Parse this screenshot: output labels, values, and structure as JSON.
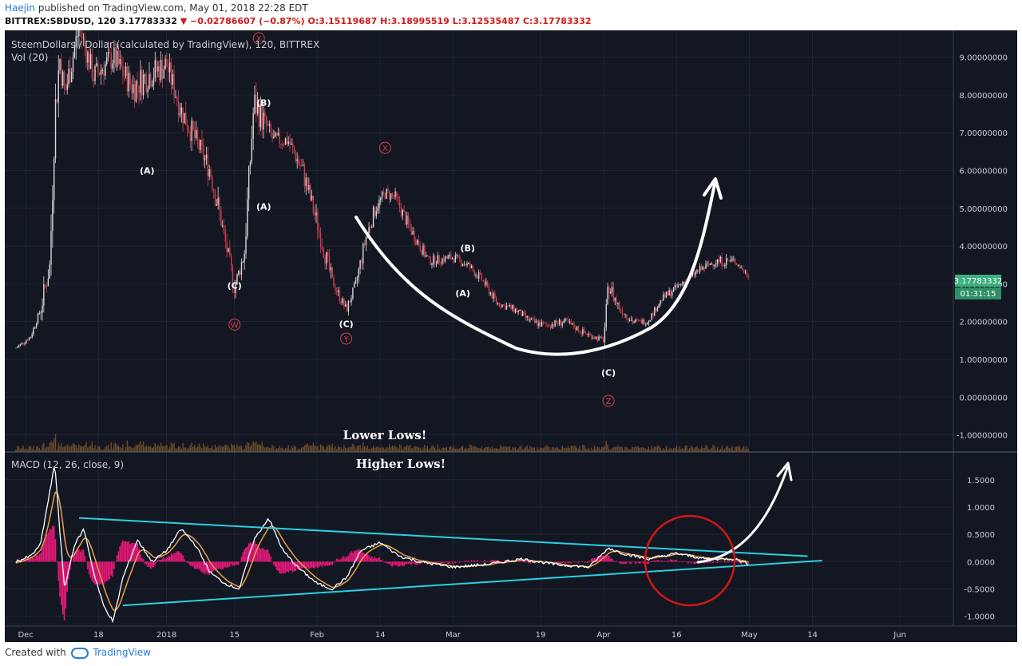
{
  "header": {
    "author": "Haejin",
    "published_text": "published on TradingView.com, May 01, 2018 22:28 EDT",
    "symbol": "BITTREX:SBDUSD, 120",
    "last_price": "3.17783332",
    "change_arrow": "▼",
    "change": "−0.02786607 (−0.87%)",
    "open": "O:3.15119687",
    "high": "H:3.18995519",
    "low": "L:3.12535487",
    "close": "C:3.17783332"
  },
  "footer": {
    "created_with": "Created with",
    "brand": "TradingView"
  },
  "colors": {
    "background": "#131722",
    "panel_bg": "#14161e",
    "candle_up": "#d8d8d8",
    "candle_down": "#d23d4b",
    "volume": "#6a4a2a",
    "macd_line": "#ffffff",
    "signal_line": "#e8a14a",
    "histogram": "#e8197a",
    "trendline": "#29d0e3",
    "circle": "#d11717",
    "price_badge": "#3daf7d"
  },
  "price_pane": {
    "title": "SteemDollars / Dollar (calculated by TradingView), 120, BITTREX",
    "volume_label": "Vol (20)",
    "y_ticks": [
      "9.00000000",
      "8.00000000",
      "7.00000000",
      "6.00000000",
      "5.00000000",
      "4.00000000",
      "3.00000000",
      "2.00000000",
      "1.00000000",
      "0.00000000",
      "-1.00000000"
    ],
    "price_badge": "3.17783332",
    "countdown_badge": "01:31:15",
    "wave_labels": [
      {
        "text": "(A)",
        "color": "#ffffff",
        "x": "2017-12-28",
        "price": 6.0
      },
      {
        "text": "(C)",
        "color": "#ffffff",
        "x": "2018-01-15",
        "price": 2.95
      },
      {
        "text": "W",
        "color": "#d23d4b",
        "circled": true,
        "x": "2018-01-15",
        "price": 1.92
      },
      {
        "text": "(B)",
        "color": "#ffffff",
        "x": "2018-01-21",
        "price": 7.8
      },
      {
        "text": "X",
        "color": "#d23d4b",
        "circled": true,
        "x": "2018-01-20",
        "price": 9.5
      },
      {
        "text": "(A)",
        "color": "#ffffff",
        "x": "2018-01-21",
        "price": 5.05
      },
      {
        "text": "(C)",
        "color": "#ffffff",
        "x": "2018-02-07",
        "price": 1.94
      },
      {
        "text": "Y",
        "color": "#d23d4b",
        "circled": true,
        "x": "2018-02-07",
        "price": 1.55
      },
      {
        "text": "X",
        "color": "#d23d4b",
        "circled": true,
        "x": "2018-02-15",
        "price": 6.6
      },
      {
        "text": "(B)",
        "color": "#ffffff",
        "x": "2018-03-04",
        "price": 3.95
      },
      {
        "text": "(A)",
        "color": "#ffffff",
        "x": "2018-03-03",
        "price": 2.75
      },
      {
        "text": "(C)",
        "color": "#ffffff",
        "x": "2018-04-02",
        "price": 0.65
      },
      {
        "text": "Z",
        "color": "#d23d4b",
        "circled": true,
        "x": "2018-04-02",
        "price": -0.1
      }
    ],
    "annotation": "Lower Lows!"
  },
  "macd_pane": {
    "title": "MACD (12, 26, close, 9)",
    "y_ticks": [
      "1.5000",
      "1.0000",
      "0.5000",
      "0.0000",
      "-0.5000",
      "-1.0000"
    ],
    "annotation": "Higher Lows!"
  },
  "x_axis": {
    "labels": [
      "Dec",
      "18",
      "2018",
      "15",
      "Feb",
      "14",
      "Mar",
      "19",
      "Apr",
      "16",
      "May",
      "14",
      "Jun"
    ]
  },
  "chart_data": [
    {
      "type": "candlestick",
      "title": "SteemDollars / Dollar (calculated by TradingView), 120, BITTREX",
      "x_range": [
        "2017-12-01",
        "2018-06-12"
      ],
      "ylim": [
        -1.2,
        9.5
      ],
      "y_ticks": [
        9,
        8,
        7,
        6,
        5,
        4,
        3,
        2,
        1,
        0,
        -1
      ],
      "grid": true,
      "series": [
        {
          "name": "",
          "x": [
            "2017-12-01",
            "2017-12-04",
            "2017-12-06",
            "2017-12-08",
            "2017-12-09",
            "2017-12-10",
            "2017-12-11",
            "2017-12-14",
            "2017-12-17",
            "2017-12-21",
            "2017-12-25",
            "2017-12-28",
            "2018-01-01",
            "2018-01-04",
            "2018-01-07",
            "2018-01-10",
            "2018-01-12",
            "2018-01-15",
            "2018-01-17",
            "2018-01-19",
            "2018-01-21",
            "2018-01-23",
            "2018-01-26",
            "2018-01-29",
            "2018-02-01",
            "2018-02-04",
            "2018-02-07",
            "2018-02-09",
            "2018-02-11",
            "2018-02-13",
            "2018-02-15",
            "2018-02-17",
            "2018-02-20",
            "2018-02-24",
            "2018-03-01",
            "2018-03-04",
            "2018-03-07",
            "2018-03-10",
            "2018-03-14",
            "2018-03-17",
            "2018-03-20",
            "2018-03-24",
            "2018-03-28",
            "2018-04-01",
            "2018-04-02",
            "2018-04-04",
            "2018-04-07",
            "2018-04-10",
            "2018-04-13",
            "2018-04-16",
            "2018-04-20",
            "2018-04-24",
            "2018-04-28",
            "2018-05-01"
          ],
          "close": [
            1.3,
            1.6,
            2.3,
            3.5,
            7.5,
            9.0,
            8.0,
            9.8,
            8.5,
            9.0,
            8.2,
            8.5,
            8.8,
            7.6,
            6.8,
            6.0,
            4.8,
            2.9,
            3.8,
            7.8,
            7.3,
            6.8,
            6.8,
            6.0,
            4.6,
            3.1,
            2.3,
            3.0,
            4.2,
            5.0,
            5.4,
            5.3,
            4.5,
            3.6,
            3.7,
            3.5,
            3.1,
            2.5,
            2.3,
            2.0,
            1.9,
            2.0,
            1.7,
            1.5,
            3.0,
            2.4,
            2.0,
            2.0,
            2.6,
            2.9,
            3.3,
            3.6,
            3.6,
            3.18
          ],
          "high": [
            1.4,
            1.8,
            2.6,
            5.5,
            9.5,
            9.8,
            9.5,
            9.8,
            9.6,
            9.6,
            9.3,
            9.5,
            9.4,
            8.6,
            7.6,
            6.8,
            5.8,
            3.4,
            5.0,
            9.0,
            8.0,
            7.4,
            7.2,
            6.6,
            5.4,
            3.8,
            2.6,
            3.6,
            5.0,
            5.6,
            5.8,
            5.7,
            4.9,
            4.0,
            4.0,
            3.8,
            3.4,
            2.8,
            2.6,
            2.3,
            2.2,
            2.3,
            2.0,
            1.8,
            3.5,
            2.9,
            2.3,
            2.3,
            2.9,
            3.2,
            3.6,
            3.9,
            3.9,
            3.19
          ],
          "low": [
            1.1,
            1.4,
            2.0,
            2.8,
            5.5,
            7.5,
            6.5,
            8.0,
            7.5,
            7.8,
            7.0,
            7.0,
            7.5,
            6.5,
            5.8,
            5.0,
            3.5,
            2.8,
            3.0,
            6.0,
            6.3,
            6.0,
            6.1,
            5.0,
            3.6,
            2.6,
            2.2,
            2.5,
            3.6,
            4.6,
            4.9,
            4.7,
            3.8,
            3.3,
            3.3,
            3.1,
            2.6,
            2.2,
            2.0,
            1.7,
            1.6,
            1.7,
            1.5,
            1.4,
            1.8,
            2.0,
            1.8,
            1.9,
            2.3,
            2.6,
            3.0,
            3.2,
            3.1,
            3.13
          ]
        }
      ]
    },
    {
      "type": "macd",
      "title": "MACD (12, 26, close, 9)",
      "x_range": [
        "2017-12-01",
        "2018-06-12"
      ],
      "ylim": [
        -1.15,
        1.95
      ],
      "y_ticks": [
        1.5,
        1.0,
        0.5,
        0.0,
        -0.5,
        -1.0
      ],
      "grid": true,
      "series": [
        {
          "name": "",
          "x": [
            "2017-12-01",
            "2017-12-04",
            "2017-12-06",
            "2017-12-08",
            "2017-12-09",
            "2017-12-10",
            "2017-12-11",
            "2017-12-13",
            "2017-12-15",
            "2017-12-17",
            "2017-12-19",
            "2017-12-21",
            "2017-12-23",
            "2017-12-26",
            "2017-12-29",
            "2018-01-01",
            "2018-01-04",
            "2018-01-07",
            "2018-01-10",
            "2018-01-13",
            "2018-01-16",
            "2018-01-19",
            "2018-01-22",
            "2018-01-25",
            "2018-01-28",
            "2018-02-01",
            "2018-02-04",
            "2018-02-07",
            "2018-02-10",
            "2018-02-14",
            "2018-02-18",
            "2018-02-22",
            "2018-03-01",
            "2018-03-08",
            "2018-03-15",
            "2018-03-22",
            "2018-03-29",
            "2018-04-02",
            "2018-04-05",
            "2018-04-10",
            "2018-04-16",
            "2018-04-22",
            "2018-04-28",
            "2018-05-01"
          ],
          "values": [
            0.0,
            0.1,
            0.3,
            1.3,
            1.8,
            0.6,
            -0.5,
            0.3,
            0.6,
            -0.2,
            -0.8,
            -1.1,
            -0.3,
            0.4,
            0.0,
            0.2,
            0.6,
            0.3,
            -0.2,
            -0.4,
            -0.5,
            0.4,
            0.8,
            0.2,
            -0.1,
            -0.4,
            -0.5,
            -0.3,
            0.2,
            0.35,
            0.1,
            0.0,
            -0.1,
            -0.05,
            0.05,
            -0.05,
            -0.1,
            0.25,
            0.15,
            0.05,
            0.15,
            0.05,
            0.05,
            -0.05
          ]
        }
      ],
      "trendlines": [
        {
          "name": "",
          "from": [
            "2017-12-14",
            0.8
          ],
          "to": [
            "2018-05-13",
            0.1
          ]
        },
        {
          "name": "",
          "from": [
            "2017-12-23",
            -0.8
          ],
          "to": [
            "2018-05-16",
            0.02
          ]
        }
      ]
    }
  ]
}
